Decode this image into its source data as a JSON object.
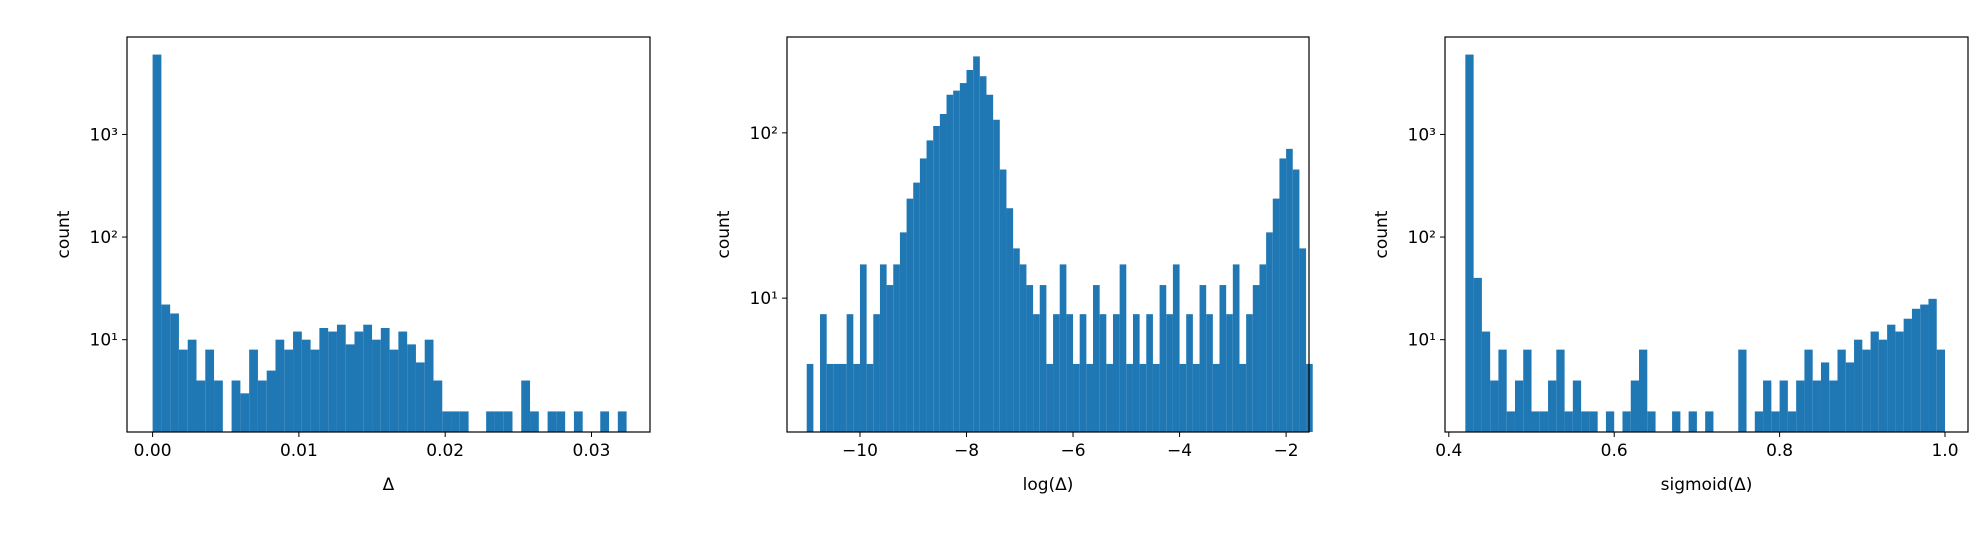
{
  "chart_data": [
    {
      "type": "histogram",
      "xlabel": "Δ",
      "ylabel": "count",
      "color": "#1f77b4",
      "log_y": true,
      "bins": [
        0,
        0.0006,
        0.0012,
        0.0018,
        0.0024,
        0.003,
        0.0036,
        0.0042,
        0.0048,
        0.0054,
        0.006,
        0.0066,
        0.0072,
        0.0078,
        0.0084,
        0.009,
        0.0096,
        0.0102,
        0.0108,
        0.0114,
        0.012,
        0.0126,
        0.0132,
        0.0138,
        0.0144,
        0.015,
        0.0156,
        0.0162,
        0.0168,
        0.0174,
        0.018,
        0.0186,
        0.0192,
        0.0198,
        0.0204,
        0.021,
        0.0216,
        0.0222,
        0.0228,
        0.0234,
        0.024,
        0.0246,
        0.0252,
        0.0258,
        0.0264,
        0.027,
        0.0276,
        0.0282,
        0.0288,
        0.0294,
        0.03,
        0.0306,
        0.0312,
        0.0318,
        0.0324
      ],
      "counts": [
        6000,
        22,
        18,
        8,
        10,
        4,
        8,
        4,
        0,
        4,
        3,
        8,
        4,
        5,
        10,
        8,
        12,
        10,
        8,
        13,
        12,
        14,
        9,
        12,
        14,
        10,
        13,
        8,
        12,
        9,
        6,
        10,
        4,
        2,
        2,
        2,
        0,
        0,
        2,
        2,
        2,
        0,
        4,
        2,
        0,
        2,
        2,
        0,
        2,
        0,
        0,
        2,
        0,
        2
      ],
      "xlim": [
        -0.00175,
        0.034
      ],
      "ylim": [
        1.26,
        8900
      ],
      "xticks": [
        {
          "value": 0,
          "label": "0.00"
        },
        {
          "value": 0.01,
          "label": "0.01"
        },
        {
          "value": 0.02,
          "label": "0.02"
        },
        {
          "value": 0.03,
          "label": "0.03"
        }
      ],
      "yticks": [
        {
          "value": 10,
          "label": "10¹"
        },
        {
          "value": 100,
          "label": "10²"
        },
        {
          "value": 1000,
          "label": "10³"
        }
      ]
    },
    {
      "type": "histogram",
      "xlabel": "log(Δ)",
      "ylabel": "count",
      "color": "#1f77b4",
      "log_y": true,
      "bins": [
        -11,
        -10.875,
        -10.75,
        -10.625,
        -10.5,
        -10.375,
        -10.25,
        -10.125,
        -10,
        -9.875,
        -9.75,
        -9.625,
        -9.5,
        -9.375,
        -9.25,
        -9.125,
        -9,
        -8.875,
        -8.75,
        -8.625,
        -8.5,
        -8.375,
        -8.25,
        -8.125,
        -8,
        -7.875,
        -7.75,
        -7.625,
        -7.5,
        -7.375,
        -7.25,
        -7.125,
        -7,
        -6.875,
        -6.75,
        -6.625,
        -6.5,
        -6.375,
        -6.25,
        -6.125,
        -6,
        -5.875,
        -5.75,
        -5.625,
        -5.5,
        -5.375,
        -5.25,
        -5.125,
        -5,
        -4.875,
        -4.75,
        -4.625,
        -4.5,
        -4.375,
        -4.25,
        -4.125,
        -4,
        -3.875,
        -3.75,
        -3.625,
        -3.5,
        -3.375,
        -3.25,
        -3.125,
        -3,
        -2.875,
        -2.75,
        -2.625,
        -2.5,
        -2.375,
        -2.25,
        -2.125,
        -2,
        -1.875,
        -1.75,
        -1.625,
        -1.5
      ],
      "counts": [
        4,
        0,
        8,
        4,
        4,
        4,
        8,
        4,
        16,
        4,
        8,
        16,
        12,
        16,
        25,
        40,
        50,
        70,
        90,
        110,
        130,
        170,
        180,
        200,
        240,
        290,
        220,
        170,
        120,
        60,
        35,
        20,
        16,
        12,
        8,
        12,
        4,
        8,
        16,
        8,
        4,
        8,
        4,
        12,
        8,
        4,
        8,
        16,
        4,
        8,
        4,
        8,
        4,
        12,
        8,
        16,
        4,
        8,
        4,
        12,
        8,
        4,
        12,
        8,
        16,
        4,
        8,
        12,
        16,
        25,
        40,
        70,
        80,
        60,
        20,
        4
      ],
      "xlim": [
        -11.37,
        -1.57
      ],
      "ylim": [
        1.55,
        380
      ],
      "xticks": [
        {
          "value": -10,
          "label": "−10"
        },
        {
          "value": -8,
          "label": "−8"
        },
        {
          "value": -6,
          "label": "−6"
        },
        {
          "value": -4,
          "label": "−4"
        },
        {
          "value": -2,
          "label": "−2"
        }
      ],
      "yticks": [
        {
          "value": 10,
          "label": "10¹"
        },
        {
          "value": 100,
          "label": "10²"
        }
      ]
    },
    {
      "type": "histogram",
      "xlabel": "sigmoid(Δ)",
      "ylabel": "count",
      "color": "#1f77b4",
      "log_y": true,
      "bins": [
        0.42,
        0.43,
        0.44,
        0.45,
        0.46,
        0.47,
        0.48,
        0.49,
        0.5,
        0.51,
        0.52,
        0.53,
        0.54,
        0.55,
        0.56,
        0.57,
        0.58,
        0.59,
        0.6,
        0.61,
        0.62,
        0.63,
        0.64,
        0.65,
        0.66,
        0.67,
        0.68,
        0.69,
        0.7,
        0.71,
        0.72,
        0.73,
        0.74,
        0.75,
        0.76,
        0.77,
        0.78,
        0.79,
        0.8,
        0.81,
        0.82,
        0.83,
        0.84,
        0.85,
        0.86,
        0.87,
        0.88,
        0.89,
        0.9,
        0.91,
        0.92,
        0.93,
        0.94,
        0.95,
        0.96,
        0.97,
        0.98,
        0.99,
        1.0
      ],
      "counts": [
        6000,
        40,
        12,
        4,
        8,
        2,
        4,
        8,
        2,
        2,
        4,
        8,
        2,
        4,
        2,
        2,
        0,
        2,
        0,
        2,
        4,
        8,
        2,
        0,
        0,
        2,
        0,
        2,
        0,
        2,
        0,
        0,
        0,
        8,
        0,
        2,
        4,
        2,
        4,
        2,
        4,
        8,
        4,
        6,
        4,
        8,
        6,
        10,
        8,
        12,
        10,
        14,
        12,
        16,
        20,
        22,
        25,
        8
      ],
      "xlim": [
        0.3954,
        1.0278
      ],
      "ylim": [
        1.26,
        8900
      ],
      "xticks": [
        0.4,
        0.6,
        0.8,
        {
          "value": 1,
          "label": "1.0"
        }
      ],
      "yticks": [
        {
          "value": 10,
          "label": "10¹"
        },
        {
          "value": 100,
          "label": "10²"
        },
        {
          "value": 1000,
          "label": "10³"
        }
      ]
    }
  ]
}
